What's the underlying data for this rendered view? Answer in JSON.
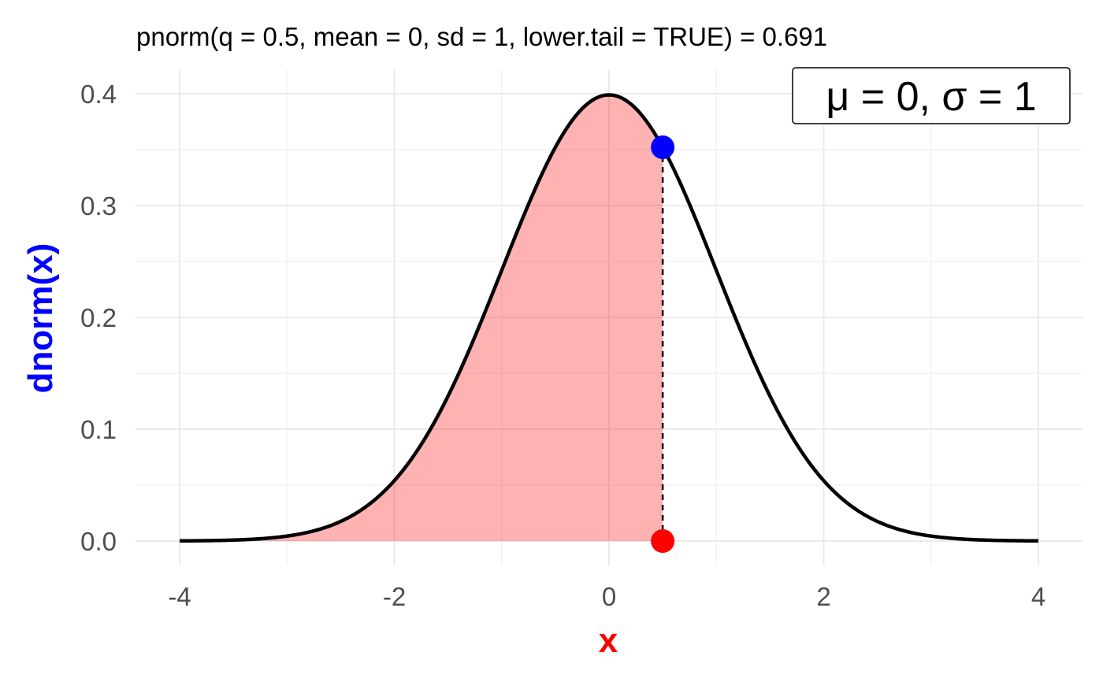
{
  "chart_data": {
    "type": "area",
    "title": "pnorm(q = 0.5, mean = 0, sd = 1, lower.tail = TRUE) = 0.691",
    "xlabel": "x",
    "ylabel": "dnorm(x)",
    "xlim": [
      -4,
      4
    ],
    "ylim": [
      0,
      0.4
    ],
    "x_ticks": [
      -4,
      -2,
      0,
      2,
      4
    ],
    "x_tick_labels": [
      "-4",
      "-2",
      "0",
      "2",
      "4"
    ],
    "y_ticks": [
      0,
      0.1,
      0.2,
      0.3,
      0.4
    ],
    "y_tick_labels": [
      "0.0",
      "0.1",
      "0.2",
      "0.3",
      "0.4"
    ],
    "grid": true,
    "distribution": {
      "mean": 0,
      "sd": 1
    },
    "series": [
      {
        "type": "line",
        "x": [
          -4,
          -3.5,
          -3,
          -2.5,
          -2,
          -1.5,
          -1,
          -0.5,
          0,
          0.5,
          1,
          1.5,
          2,
          2.5,
          3,
          3.5,
          4
        ],
        "y": [
          0.0001,
          0.0009,
          0.0044,
          0.0175,
          0.054,
          0.1295,
          0.242,
          0.3521,
          0.3989,
          0.3521,
          0.242,
          0.1295,
          0.054,
          0.0175,
          0.0044,
          0.0009,
          0.0001
        ],
        "color": "#000000"
      }
    ],
    "shaded_region": {
      "from": -4,
      "to": 0.5,
      "color": "#ff0000",
      "opacity": 0.3
    },
    "vertical_line": {
      "x": 0.5,
      "from_y": 0,
      "to_y": 0.3521,
      "style": "dashed",
      "color": "#000000"
    },
    "points": [
      {
        "x": 0.5,
        "y": 0.3521,
        "color": "#0000ff"
      },
      {
        "x": 0.5,
        "y": 0,
        "color": "#ff0000"
      }
    ],
    "annotation": {
      "text": "μ = 0, σ = 1",
      "placement": "top-right"
    },
    "xlabel_color": "#ff0000",
    "ylabel_color": "#0000ff"
  }
}
